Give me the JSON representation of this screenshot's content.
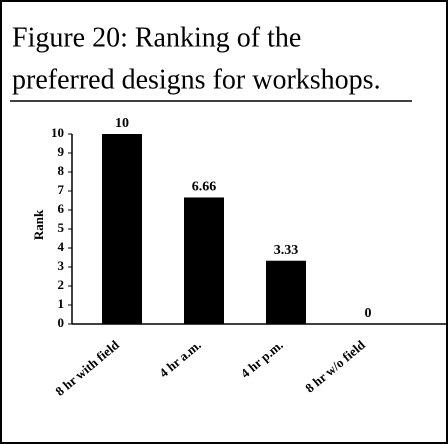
{
  "chart_data": {
    "type": "bar",
    "title_lines": [
      "Figure 20:  Ranking of the",
      "preferred designs for workshops."
    ],
    "y_label": "Rank",
    "categories": [
      "8 hr with field",
      "4 hr a.m.",
      "4 hr p.m.",
      "8 hr w/o field"
    ],
    "values": [
      10,
      6.66,
      3.33,
      0
    ],
    "color": "#000000",
    "ylim": [
      0,
      10
    ],
    "yticks": [
      0,
      1,
      2,
      3,
      4,
      5,
      6,
      7,
      8,
      9,
      10
    ],
    "grid": false
  }
}
